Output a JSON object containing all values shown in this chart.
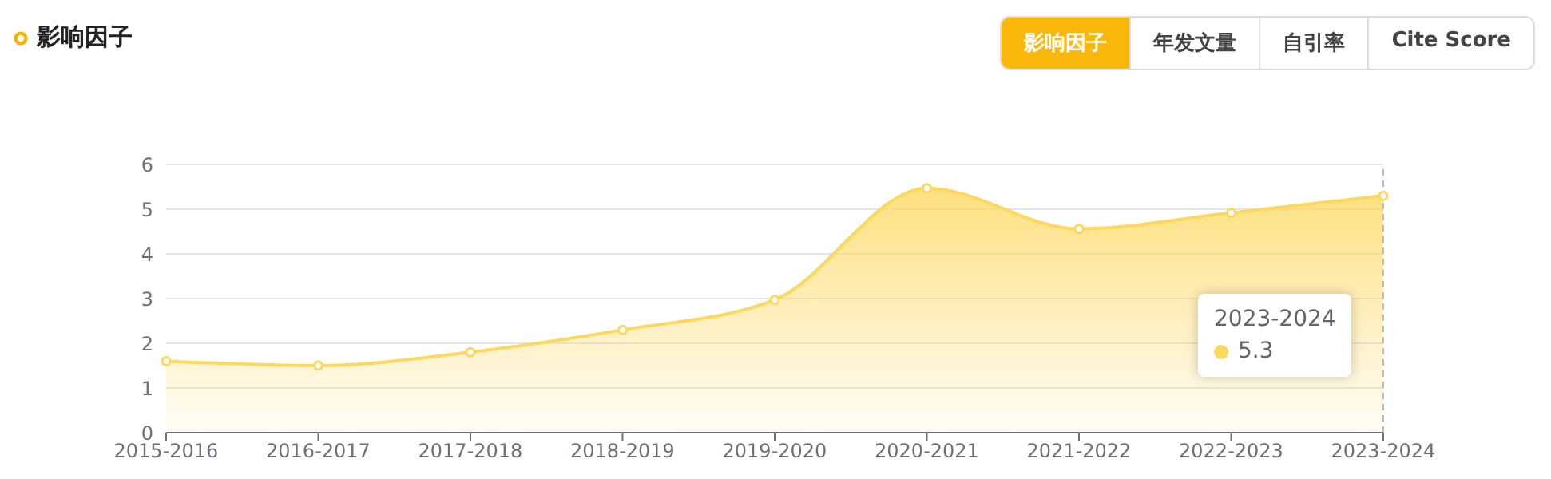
{
  "chart_data": {
    "type": "area",
    "title": "影响因子",
    "categories": [
      "2015-2016",
      "2016-2017",
      "2017-2018",
      "2018-2019",
      "2019-2020",
      "2020-2021",
      "2021-2022",
      "2022-2023",
      "2023-2024"
    ],
    "series": [
      {
        "color": "#fdd85e",
        "values": [
          1.6,
          1.5,
          1.8,
          2.3,
          2.97,
          5.47,
          4.56,
          4.92,
          5.3
        ]
      }
    ],
    "ylim": [
      0,
      6
    ],
    "yticks": [
      0,
      1,
      2,
      3,
      4,
      5,
      6
    ],
    "grid": "y",
    "marker": "circle",
    "ref_lines": [
      {
        "axis": "x",
        "value": "2023-2024",
        "color": "#bbbbbb",
        "line_style": "dashed"
      }
    ],
    "annotations": [
      "影响因子",
      "年发文量",
      "自引率",
      "Cite Score",
      "2023-2024",
      "5.3"
    ]
  }
}
